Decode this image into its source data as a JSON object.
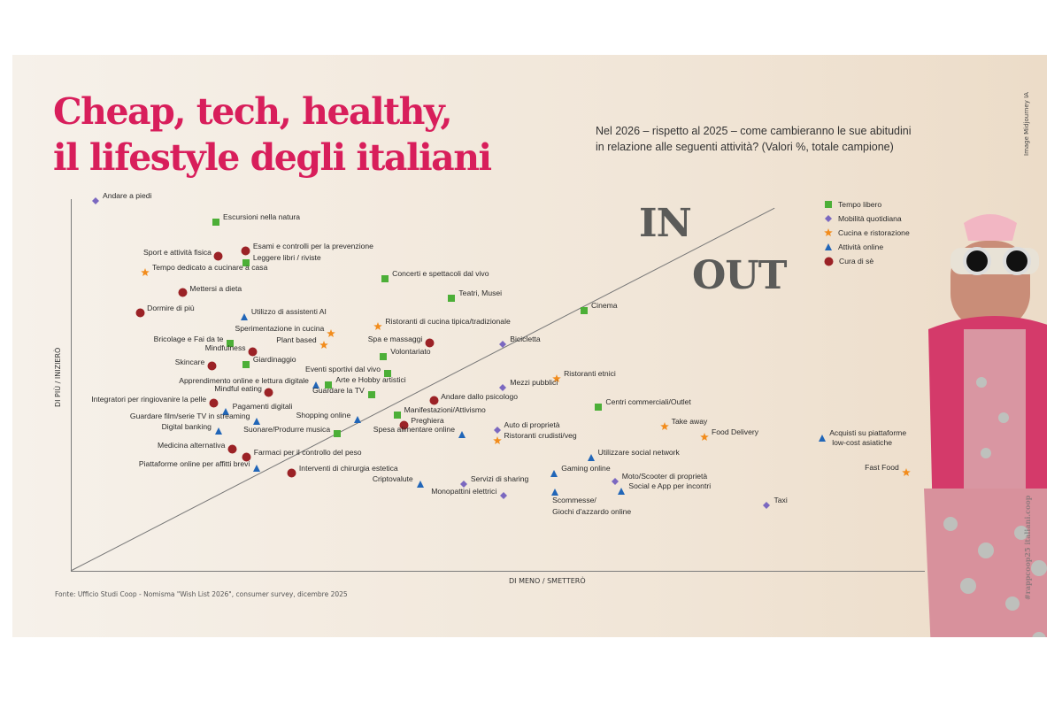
{
  "title_line1": "Cheap, tech, healthy,",
  "title_line2": "il lifestyle degli italiani",
  "subtitle_line1": "Nel 2026 – rispetto al 2025 – come cambieranno le sue abitudini",
  "subtitle_line2": "in relazione alle seguenti attività? (Valori %, totale campione)",
  "image_credit": "Image Midjourney IA",
  "hashtag": "#rappcoop25 italiani.coop",
  "source": "Fonte: Ufficio Studi Coop - Nomisma \"Wish List 2026\", consumer survey, dicembre 2025",
  "colors": {
    "title": "#d81e5b",
    "tempo_libero": "#4caf37",
    "mobilita": "#7b68c0",
    "cucina": "#f28c1c",
    "online": "#2166b8",
    "cura": "#9b2226",
    "in_out": "#5b5b59"
  },
  "chart_data": {
    "type": "scatter",
    "title": "",
    "xlabel": "DI MENO / SMETTERÒ",
    "ylabel": "DI PIÙ / INIZIERÒ",
    "xlim": [
      0,
      100
    ],
    "ylim": [
      0,
      100
    ],
    "grid": false,
    "legend_position": "top-right",
    "zone_labels": {
      "above": "IN",
      "below": "OUT"
    },
    "diagonal": {
      "from": [
        0,
        0
      ],
      "to": [
        82.4,
        95.3
      ]
    },
    "categories": [
      {
        "key": "tempo",
        "name": "Tempo libero",
        "marker": "square",
        "color": "#4caf37"
      },
      {
        "key": "mobilita",
        "name": "Mobilità quotidiana",
        "marker": "diamond",
        "color": "#7b68c0"
      },
      {
        "key": "cucina",
        "name": "Cucina e ristorazione",
        "marker": "star",
        "color": "#f28c1c"
      },
      {
        "key": "online",
        "name": "Attività online",
        "marker": "triangle",
        "color": "#2166b8"
      },
      {
        "key": "cura",
        "name": "Cura di sè",
        "marker": "circle",
        "color": "#9b2226"
      }
    ],
    "points": [
      {
        "label": "Andare a piedi",
        "cat": "mobilita",
        "x": 2.9,
        "y": 98.4,
        "side": "right"
      },
      {
        "label": "Escursioni nella natura",
        "cat": "tempo",
        "x": 17.0,
        "y": 92.8,
        "side": "right"
      },
      {
        "label": "Esami e controlli per la prevenzione",
        "cat": "cura",
        "x": 20.5,
        "y": 85.1,
        "side": "right"
      },
      {
        "label": "Sport e attività fisica",
        "cat": "cura",
        "x": 17.3,
        "y": 83.5,
        "side": "left"
      },
      {
        "label": "Leggere libri / riviste",
        "cat": "tempo",
        "x": 20.5,
        "y": 82.1,
        "side": "right"
      },
      {
        "label": "Tempo dedicato a cucinare a casa",
        "cat": "cucina",
        "x": 8.7,
        "y": 79.5,
        "side": "right"
      },
      {
        "label": "Concerti e spettacoli dal vivo",
        "cat": "tempo",
        "x": 36.8,
        "y": 77.9,
        "side": "right"
      },
      {
        "label": "Mettersi a dieta",
        "cat": "cura",
        "x": 13.1,
        "y": 74.0,
        "side": "right"
      },
      {
        "label": "Teatri, Musei",
        "cat": "tempo",
        "x": 44.6,
        "y": 72.8,
        "side": "right"
      },
      {
        "label": "Dormire di più",
        "cat": "cura",
        "x": 8.1,
        "y": 68.8,
        "side": "right"
      },
      {
        "label": "Utilizzo di assistenti AI",
        "cat": "online",
        "x": 20.3,
        "y": 67.9,
        "side": "right"
      },
      {
        "label": "Cinema",
        "cat": "tempo",
        "x": 60.1,
        "y": 69.5,
        "side": "right"
      },
      {
        "label": "Ristoranti di cucina tipica/tradizionale",
        "cat": "cucina",
        "x": 36.0,
        "y": 65.3,
        "side": "right"
      },
      {
        "label": "Sperimentazione in cucina",
        "cat": "cucina",
        "x": 30.5,
        "y": 63.5,
        "side": "left"
      },
      {
        "label": "Bricolage e Fai da te",
        "cat": "tempo",
        "x": 18.7,
        "y": 60.9,
        "side": "left"
      },
      {
        "label": "Plant based",
        "cat": "cucina",
        "x": 29.6,
        "y": 60.5,
        "side": "left"
      },
      {
        "label": "Spa e massaggi",
        "cat": "cura",
        "x": 42.0,
        "y": 60.7,
        "side": "left"
      },
      {
        "label": "Bicicletta",
        "cat": "mobilita",
        "x": 50.6,
        "y": 60.7,
        "side": "right"
      },
      {
        "label": "Mindfulness",
        "cat": "cura",
        "x": 21.3,
        "y": 58.6,
        "side": "left"
      },
      {
        "label": "Volontariato",
        "cat": "tempo",
        "x": 36.6,
        "y": 57.4,
        "side": "right"
      },
      {
        "label": "Giardinaggio",
        "cat": "tempo",
        "x": 20.5,
        "y": 55.3,
        "side": "right"
      },
      {
        "label": "Skincare",
        "cat": "cura",
        "x": 16.5,
        "y": 54.7,
        "side": "left"
      },
      {
        "label": "Eventi sportivi dal vivo",
        "cat": "tempo",
        "x": 37.1,
        "y": 53.0,
        "side": "left"
      },
      {
        "label": "Ristoranti etnici",
        "cat": "cucina",
        "x": 56.9,
        "y": 51.6,
        "side": "right"
      },
      {
        "label": "Apprendimento online e lettura digitale",
        "cat": "online",
        "x": 28.7,
        "y": 50.0,
        "side": "left"
      },
      {
        "label": "Arte e Hobby artistici",
        "cat": "tempo",
        "x": 30.2,
        "y": 50.0,
        "side": "right"
      },
      {
        "label": "Mezzi pubblici",
        "cat": "mobilita",
        "x": 50.6,
        "y": 49.3,
        "side": "right"
      },
      {
        "label": "Mindful eating",
        "cat": "cura",
        "x": 23.2,
        "y": 47.7,
        "side": "left"
      },
      {
        "label": "Guardare la TV",
        "cat": "tempo",
        "x": 35.2,
        "y": 47.4,
        "side": "left"
      },
      {
        "label": "Andare dallo psicologo",
        "cat": "cura",
        "x": 42.5,
        "y": 45.6,
        "side": "right"
      },
      {
        "label": "Integratori per ringiovanire la pelle",
        "cat": "cura",
        "x": 16.7,
        "y": 45.1,
        "side": "left"
      },
      {
        "label": "Centri commerciali/Outlet",
        "cat": "tempo",
        "x": 61.8,
        "y": 44.2,
        "side": "right"
      },
      {
        "label": "Pagamenti digitali",
        "cat": "online",
        "x": 18.1,
        "y": 43.0,
        "side": "right"
      },
      {
        "label": "Manifestazioni/Attivismo",
        "cat": "tempo",
        "x": 38.2,
        "y": 42.1,
        "side": "right"
      },
      {
        "label": "Guardare film/serie TV in streaming",
        "cat": "online",
        "x": 21.8,
        "y": 40.5,
        "side": "left"
      },
      {
        "label": "Shopping online",
        "cat": "online",
        "x": 33.6,
        "y": 40.9,
        "side": "left"
      },
      {
        "label": "Preghiera",
        "cat": "cura",
        "x": 39.0,
        "y": 39.3,
        "side": "right"
      },
      {
        "label": "Take away",
        "cat": "cucina",
        "x": 69.5,
        "y": 39.1,
        "side": "right"
      },
      {
        "label": "Digital banking",
        "cat": "online",
        "x": 17.3,
        "y": 37.9,
        "side": "left"
      },
      {
        "label": "Auto di proprietà",
        "cat": "mobilita",
        "x": 49.9,
        "y": 38.1,
        "side": "right"
      },
      {
        "label": "Suonare/Produrre musica",
        "cat": "tempo",
        "x": 31.2,
        "y": 37.2,
        "side": "left"
      },
      {
        "label": "Spesa alimentare online",
        "cat": "online",
        "x": 45.8,
        "y": 37.0,
        "side": "left"
      },
      {
        "label": "Food Delivery",
        "cat": "cucina",
        "x": 74.2,
        "y": 36.3,
        "side": "right"
      },
      {
        "label": "Acquisti su piattaforme\nlow-cost asiatiche",
        "cat": "online",
        "x": 88.0,
        "y": 36.0,
        "side": "right"
      },
      {
        "label": "Ristoranti crudisti/veg",
        "cat": "cucina",
        "x": 49.9,
        "y": 35.3,
        "side": "right"
      },
      {
        "label": "Medicina alternativa",
        "cat": "cura",
        "x": 18.9,
        "y": 32.8,
        "side": "left"
      },
      {
        "label": "Farmaci per il controllo del peso",
        "cat": "cura",
        "x": 20.6,
        "y": 30.9,
        "side": "right"
      },
      {
        "label": "Utilizzare social network",
        "cat": "online",
        "x": 60.9,
        "y": 30.9,
        "side": "right"
      },
      {
        "label": "Piattaforme online per affitti brevi",
        "cat": "online",
        "x": 21.8,
        "y": 28.1,
        "side": "left"
      },
      {
        "label": "Fast Food",
        "cat": "cucina",
        "x": 97.8,
        "y": 27.0,
        "side": "left"
      },
      {
        "label": "Interventi di chirurgia estetica",
        "cat": "cura",
        "x": 25.9,
        "y": 26.7,
        "side": "right"
      },
      {
        "label": "Gaming online",
        "cat": "online",
        "x": 56.6,
        "y": 26.7,
        "side": "right"
      },
      {
        "label": "Moto/Scooter di proprietà",
        "cat": "mobilita",
        "x": 63.7,
        "y": 24.7,
        "side": "right"
      },
      {
        "label": "Criptovalute",
        "cat": "online",
        "x": 40.9,
        "y": 24.0,
        "side": "left"
      },
      {
        "label": "Servizi di sharing",
        "cat": "mobilita",
        "x": 46.0,
        "y": 24.0,
        "side": "right"
      },
      {
        "label": "Social e App per incontri",
        "cat": "online",
        "x": 64.5,
        "y": 22.1,
        "side": "right"
      },
      {
        "label": "Monopattini elettrici",
        "cat": "mobilita",
        "x": 50.7,
        "y": 20.9,
        "side": "left"
      },
      {
        "label": "Scommesse/\nGiochi d'azzardo online",
        "cat": "online",
        "x": 56.7,
        "y": 21.9,
        "side": "below"
      },
      {
        "label": "Taxi",
        "cat": "mobilita",
        "x": 81.5,
        "y": 18.4,
        "side": "right"
      }
    ]
  }
}
